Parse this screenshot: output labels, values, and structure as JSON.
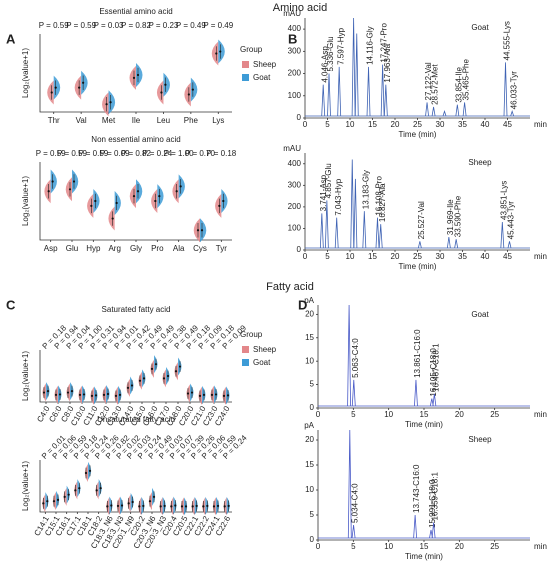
{
  "figure": {
    "sections": [
      "Amino acid",
      "Fatty acid"
    ],
    "panel_labels": [
      "A",
      "B",
      "C",
      "D"
    ]
  },
  "chart_data": [
    {
      "type": "violin",
      "title": "Essential amino acid",
      "y_label": "Log₂(value+1)",
      "legend_title": "Group",
      "categories": [
        "Thr",
        "Val",
        "Met",
        "Ile",
        "Leu",
        "Phe",
        "Lys"
      ],
      "p_labels": [
        "P = 0.59",
        "P = 0.59",
        "P = 0.03",
        "P = 0.82",
        "P = 0.23",
        "P = 0.49",
        "P = 0.49"
      ],
      "series": [
        {
          "name": "Sheep",
          "color": "#e3878a",
          "values": [
            2,
            2.5,
            0.8,
            3.5,
            2,
            1.8,
            6
          ]
        },
        {
          "name": "Goat",
          "color": "#3d9bd6",
          "values": [
            2.5,
            3,
            1,
            3.8,
            2.8,
            2.3,
            6.2
          ]
        }
      ],
      "ylim": [
        0,
        8
      ]
    },
    {
      "type": "violin",
      "title": "Non essential amino acid",
      "y_label": "Log₂(value+1)",
      "categories": [
        "Asp",
        "Glu",
        "Hyp",
        "Arg",
        "Gly",
        "Pro",
        "Ala",
        "Cys",
        "Tyr"
      ],
      "p_labels": [
        "P = 0.59",
        "P = 0.59",
        "P = 0.59",
        "P = 0.09",
        "P = 0.82",
        "P = 0.24",
        "P = 1.00",
        "P = 0.70",
        "P = 0.18"
      ],
      "series": [
        {
          "name": "Sheep",
          "color": "#e3878a",
          "values": [
            4,
            4.2,
            2.5,
            1.2,
            3.5,
            3,
            4,
            0,
            2.5
          ]
        },
        {
          "name": "Goat",
          "color": "#3d9bd6",
          "values": [
            5,
            5,
            3,
            2.8,
            4,
            3.5,
            4.5,
            0,
            3
          ]
        }
      ],
      "ylim": [
        -1,
        7
      ]
    },
    {
      "type": "violin",
      "title": "Saturated fatty acid",
      "y_label": "Log₂(value+1)",
      "legend_title": "Group",
      "categories": [
        "C4:0",
        "C6:0",
        "C8:0",
        "C10:0",
        "C11:0",
        "C12:0",
        "C13:0",
        "C14:0",
        "C15:0",
        "C16:0",
        "C17:0",
        "C18:0",
        "C20:0",
        "C21:0",
        "C23:0",
        "C24:0"
      ],
      "p_labels": [
        "P = 0.18",
        "P = 0.94",
        "P = 0.04",
        "P = 1.00",
        "P = 0.31",
        "P = 0.94",
        "P = 0.01",
        "P = 0.42",
        "P = 0.49",
        "P = 0.49",
        "P = 0.38",
        "P = 0.49",
        "P = 0.18",
        "P = 0.09",
        "P = 0.18",
        "P = 0.09"
      ],
      "series": [
        {
          "name": "Sheep",
          "color": "#e3878a",
          "values": [
            1,
            0.5,
            1,
            0.5,
            0.3,
            0.5,
            0.3,
            2,
            3.5,
            6,
            4,
            5.5,
            0.8,
            0.3,
            0.5,
            0.3
          ]
        },
        {
          "name": "Goat",
          "color": "#3d9bd6",
          "values": [
            1.3,
            0.6,
            1.3,
            0.6,
            0.4,
            0.7,
            0.5,
            2.5,
            4,
            7,
            4.5,
            6.5,
            1,
            0.5,
            0.6,
            0.4
          ]
        }
      ],
      "ylim": [
        -1,
        10
      ]
    },
    {
      "type": "violin",
      "title": "Unsaturated fatty acid",
      "y_label": "Log₂(value+1)",
      "categories": [
        "C14:1",
        "C15:1",
        "C16:1",
        "C17:1",
        "C18:1",
        "C18:2",
        "C18:3_N6",
        "C18:3_N3",
        "C20:1_N9",
        "C20:2",
        "C20:3_N6",
        "C20:3_N3",
        "C20:4",
        "C20:5",
        "C22:1",
        "C22:2",
        "C24:1",
        "C22:6"
      ],
      "p_labels": [
        "P = 0.01",
        "P = 0.06",
        "P = 0.59",
        "P = 0.18",
        "P = 0.24",
        "P = 0.26",
        "P = 0.82",
        "P = 0.02",
        "P = 0.03",
        "P = 0.24",
        "P = 0.49",
        "P = 0.03",
        "P = 0.07",
        "P = 0.39",
        "P = 0.26",
        "P = 0.06",
        "P = 0.59",
        "P = 0.24"
      ],
      "series": [
        {
          "name": "Sheep",
          "color": "#e3878a",
          "values": [
            1,
            1.5,
            2.5,
            4,
            8,
            4,
            0.3,
            0.4,
            1,
            0.3,
            1.5,
            0.3,
            0.3,
            0.3,
            0.3,
            0.3,
            0.3,
            0.3
          ]
        },
        {
          "name": "Goat",
          "color": "#3d9bd6",
          "values": [
            1.5,
            1.8,
            3,
            4.5,
            8.5,
            4.5,
            0.5,
            0.5,
            1.3,
            0.4,
            2.5,
            0.4,
            0.5,
            0.3,
            0.4,
            0.4,
            0.4,
            0.4
          ]
        }
      ],
      "ylim": [
        -1,
        11
      ]
    },
    {
      "type": "chromatogram",
      "title": "Goat",
      "x_label": "Time (min)",
      "x_unit": "min",
      "y_unit": "mAU",
      "color": "#3f63b4",
      "xlim": [
        0,
        50
      ],
      "xticks": [
        0,
        5,
        10,
        15,
        20,
        25,
        30,
        35,
        40,
        45
      ],
      "ylim": [
        0,
        450
      ],
      "yticks": [
        0,
        100,
        200,
        300,
        400
      ],
      "peaks": {
        "x": [
          4.046,
          5.336,
          7.597,
          10.8,
          11.5,
          14.116,
          17.247,
          17.963,
          27.122,
          28.572,
          31,
          33.854,
          35.465,
          44.555,
          46.033
        ],
        "heights": [
          150,
          200,
          230,
          450,
          380,
          230,
          240,
          150,
          70,
          50,
          30,
          60,
          70,
          250,
          30
        ],
        "labels": [
          "4.046-Asp",
          "5.336-Glu",
          "7.597-Hyp",
          null,
          null,
          "14.116-Gly",
          "17.247-Pro",
          "17.963-Ala",
          "27.122-Val",
          "28.572-Met",
          null,
          "33.854-Ile",
          "35.465-Phe",
          "44.555-Lys",
          "46.033-Tyr"
        ]
      }
    },
    {
      "type": "chromatogram",
      "title": "Sheep",
      "x_label": "Time (min)",
      "x_unit": "min",
      "y_unit": "mAU",
      "color": "#3f63b4",
      "xlim": [
        0,
        50
      ],
      "xticks": [
        0,
        5,
        10,
        15,
        20,
        25,
        30,
        35,
        40,
        45
      ],
      "ylim": [
        0,
        450
      ],
      "yticks": [
        0,
        100,
        200,
        300,
        400
      ],
      "peaks": {
        "x": [
          3.741,
          4.857,
          7.043,
          10.5,
          11.2,
          13.183,
          16.108,
          16.827,
          25.527,
          31.969,
          33.59,
          43.851,
          45.443
        ],
        "heights": [
          170,
          230,
          150,
          420,
          330,
          180,
          150,
          120,
          40,
          60,
          50,
          130,
          40
        ],
        "labels": [
          "3.741-Asp",
          "4.857-Glu",
          "7.043-Hyp",
          null,
          null,
          "13.183-Gly",
          "16.108-Pro",
          "16.827-Ala",
          "25.527-Val",
          "31.969-Ile",
          "33.590-Phe",
          "43.851-Lys",
          "45.443-Tyr"
        ]
      }
    },
    {
      "type": "chromatogram",
      "title": "Goat",
      "x_label": "Time (min)",
      "x_unit": "min",
      "y_unit": "pA",
      "color": "#4a5bc8",
      "xlim": [
        0,
        30
      ],
      "xticks": [
        0,
        5,
        10,
        15,
        20,
        25
      ],
      "ylim": [
        0,
        22
      ],
      "yticks": [
        0,
        5,
        10,
        15,
        20
      ],
      "peaks": {
        "x": [
          4.4,
          5.063,
          13.861,
          16.105,
          16.467
        ],
        "heights": [
          22,
          6,
          6,
          2,
          3
        ],
        "labels": [
          null,
          "5.063-C4:0",
          "13.861-C16:0",
          "16.105-C18:0",
          "16.467-C18:1"
        ]
      }
    },
    {
      "type": "chromatogram",
      "title": "Sheep",
      "x_label": "Time (min)",
      "x_unit": "min",
      "y_unit": "pA",
      "color": "#4a5bc8",
      "xlim": [
        0,
        30
      ],
      "xticks": [
        0,
        5,
        10,
        15,
        20,
        25
      ],
      "ylim": [
        0,
        22
      ],
      "yticks": [
        0,
        5,
        10,
        15,
        20
      ],
      "peaks": {
        "x": [
          4.5,
          5.034,
          13.743,
          15.991,
          16.359
        ],
        "heights": [
          22,
          3,
          5,
          2,
          3.5
        ],
        "labels": [
          null,
          "5.034-C4:0",
          "13.743-C16:0",
          "15.991-C18:0",
          "16.359-C18:1"
        ]
      }
    }
  ]
}
